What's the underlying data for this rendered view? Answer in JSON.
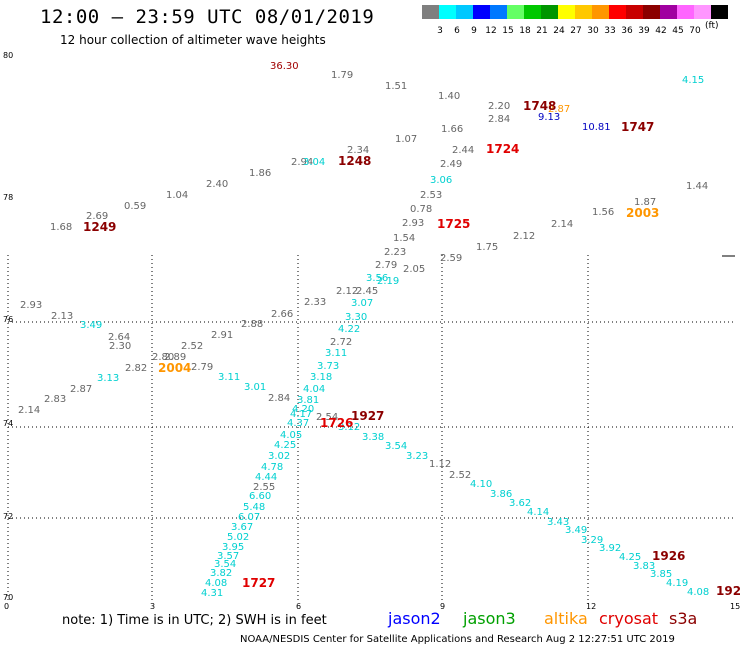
{
  "header": {
    "title": "12:00 – 23:59 UTC 08/01/2019",
    "subtitle": "12 hour collection of altimeter wave heights"
  },
  "legend": {
    "colors": [
      "#7f7f7f",
      "#00ffff",
      "#00c8ff",
      "#0000ff",
      "#0078ff",
      "#64ff64",
      "#00c800",
      "#009600",
      "#ffff00",
      "#ffc800",
      "#ff9600",
      "#ff0000",
      "#c80000",
      "#8b0000",
      "#a000a0",
      "#ff64ff",
      "#ff96ff",
      "#000000"
    ],
    "labels": [
      "3",
      "6",
      "9",
      "12",
      "15",
      "18",
      "21",
      "24",
      "27",
      "30",
      "33",
      "36",
      "39",
      "42",
      "45",
      "70"
    ],
    "unit": "(ft)"
  },
  "axes": {
    "y_labels": [
      "80",
      "78",
      "76",
      "74",
      "72",
      "70"
    ],
    "x_labels": [
      "0",
      "3",
      "6",
      "9",
      "12",
      "15"
    ]
  },
  "values_gray": [
    [
      "1.79"
    ],
    [
      "1.51"
    ],
    [
      "1.40"
    ],
    [
      "2.20"
    ],
    [
      "2.84"
    ],
    [
      "1.66"
    ],
    [
      "1.07"
    ],
    [
      "2.44"
    ],
    [
      "2.34"
    ],
    [
      "2.94"
    ],
    [
      "1.86"
    ],
    [
      "2.40"
    ],
    [
      "1.04"
    ],
    [
      "0.59"
    ],
    [
      "2.69"
    ],
    [
      "1.68"
    ],
    [
      "2.49"
    ],
    [
      "2.53"
    ],
    [
      "0.78"
    ],
    [
      "2.93"
    ],
    [
      "1.54"
    ],
    [
      "2.23"
    ],
    [
      "2.79"
    ],
    [
      "2.05"
    ],
    [
      "2.59"
    ],
    [
      "1.75"
    ],
    [
      "2.12"
    ],
    [
      "2.14"
    ],
    [
      "1.56"
    ],
    [
      "1.87"
    ],
    [
      "1.44"
    ],
    [
      "2.12"
    ],
    [
      "2.45"
    ],
    [
      "2.33"
    ],
    [
      "2.66"
    ],
    [
      "2.88"
    ],
    [
      "2.91"
    ],
    [
      "2.72"
    ],
    [
      "2.52"
    ],
    [
      "2.30"
    ],
    [
      "2.64"
    ],
    [
      "2.13"
    ],
    [
      "2.93"
    ],
    [
      "2.82"
    ],
    [
      "2.80"
    ],
    [
      "2.89"
    ],
    [
      "2.79"
    ],
    [
      "2.87"
    ],
    [
      "2.83"
    ],
    [
      "2.14"
    ],
    [
      "2.84"
    ],
    [
      "2.54"
    ],
    [
      "2.55"
    ],
    [
      "1.12"
    ],
    [
      "2.52"
    ]
  ],
  "values_cyan": [
    "4.15",
    "3.04",
    "3.06",
    "3.56",
    "2.19",
    "3.07",
    "3.30",
    "4.22",
    "3.11",
    "3.73",
    "3.18",
    "4.04",
    "3.81",
    "4.20",
    "4.17",
    "4.37",
    "3.49",
    "3.13",
    "3.11",
    "3.01",
    "4.05",
    "4.25",
    "3.02",
    "4.78",
    "4.44",
    "6.60",
    "5.48",
    "6.07",
    "3.67",
    "5.02",
    "3.95",
    "3.57",
    "3.54",
    "3.82",
    "4.08",
    "4.31",
    "3.12",
    "3.38",
    "3.54",
    "3.23",
    "4.10",
    "3.86",
    "3.62",
    "4.14",
    "3.43",
    "3.49",
    "3.29",
    "3.92",
    "4.25",
    "3.83",
    "3.85",
    "4.19",
    "4.08"
  ],
  "values_other": {
    "red": "36.30",
    "orange": "2.87",
    "blue1": "9.13",
    "blue2": "10.81"
  },
  "tracks": [
    {
      "label": "1249",
      "color": "#8b0000"
    },
    {
      "label": "1248",
      "color": "#8b0000"
    },
    {
      "label": "1748",
      "color": "#8b0000"
    },
    {
      "label": "1747",
      "color": "#8b0000"
    },
    {
      "label": "1724",
      "color": "#e00000"
    },
    {
      "label": "1725",
      "color": "#e00000"
    },
    {
      "label": "2003",
      "color": "#ff9600"
    },
    {
      "label": "2004",
      "color": "#ff9600"
    },
    {
      "label": "1927",
      "color": "#8b0000"
    },
    {
      "label": "1726",
      "color": "#e00000"
    },
    {
      "label": "1926",
      "color": "#8b0000"
    },
    {
      "label": "1727",
      "color": "#e00000"
    },
    {
      "label": "192",
      "color": "#8b0000"
    }
  ],
  "note": "note:  1) Time is in UTC;  2) SWH is in feet",
  "satellites": [
    {
      "name": "jason2",
      "color": "#0000ff"
    },
    {
      "name": "jason3",
      "color": "#00a000"
    },
    {
      "name": "altika",
      "color": "#ff9600"
    },
    {
      "name": "cryosat",
      "color": "#e00000"
    },
    {
      "name": "s3a",
      "color": "#8b0000"
    }
  ],
  "footer": "NOAA/NESDIS Center for Satellite Applications and Research    Aug  2 12:27:51 UTC 2019"
}
